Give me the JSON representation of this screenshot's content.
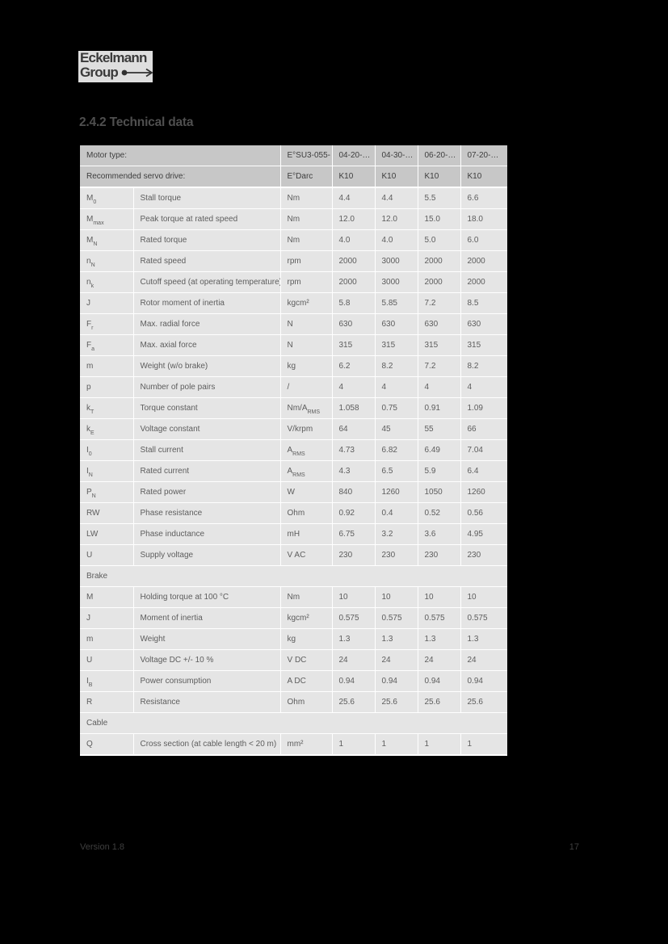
{
  "logo": {
    "line1": "Eckelmann",
    "line2": "Group",
    "arrow_icon": "dot-arrow-right-icon"
  },
  "heading": "2.4.2 Technical data",
  "table": {
    "header_rows": [
      {
        "label": "Motor type:",
        "base": "E°SU3-055-",
        "values": [
          "04-20-…",
          "04-30-…",
          "06-20-…",
          "07-20-…"
        ]
      },
      {
        "label": "Recommended servo drive:",
        "base": "E°Darc",
        "values": [
          "K10",
          "K10",
          "K10",
          "K10"
        ]
      }
    ],
    "rows": [
      {
        "sym": "M",
        "sub": "0",
        "desc": "Stall torque",
        "unit": "Nm",
        "unit_sub": "",
        "values": [
          "4.4",
          "4.4",
          "5.5",
          "6.6"
        ]
      },
      {
        "sym": "M",
        "sub": "max",
        "desc": "Peak torque at rated speed",
        "unit": "Nm",
        "unit_sub": "",
        "values": [
          "12.0",
          "12.0",
          "15.0",
          "18.0"
        ]
      },
      {
        "sym": "M",
        "sub": "N",
        "desc": "Rated torque",
        "unit": "Nm",
        "unit_sub": "",
        "values": [
          "4.0",
          "4.0",
          "5.0",
          "6.0"
        ]
      },
      {
        "sym": "n",
        "sub": "N",
        "desc": "Rated speed",
        "unit": "rpm",
        "unit_sub": "",
        "values": [
          "2000",
          "3000",
          "2000",
          "2000"
        ]
      },
      {
        "sym": "n",
        "sub": "k",
        "desc": "Cutoff speed (at operating temperature)",
        "unit": "rpm",
        "unit_sub": "",
        "values": [
          "2000",
          "3000",
          "2000",
          "2000"
        ]
      },
      {
        "sym": "J",
        "sub": "",
        "desc": "Rotor moment of inertia",
        "unit": "kgcm²",
        "unit_sub": "",
        "values": [
          "5.8",
          "5.85",
          "7.2",
          "8.5"
        ]
      },
      {
        "sym": "F",
        "sub": "r",
        "desc": "Max. radial force",
        "unit": "N",
        "unit_sub": "",
        "values": [
          "630",
          "630",
          "630",
          "630"
        ]
      },
      {
        "sym": "F",
        "sub": "a",
        "desc": "Max. axial force",
        "unit": "N",
        "unit_sub": "",
        "values": [
          "315",
          "315",
          "315",
          "315"
        ]
      },
      {
        "sym": "m",
        "sub": "",
        "desc": "Weight (w/o brake)",
        "unit": "kg",
        "unit_sub": "",
        "values": [
          "6.2",
          "8.2",
          "7.2",
          "8.2"
        ]
      },
      {
        "sym": "p",
        "sub": "",
        "desc": "Number of pole pairs",
        "unit": "/",
        "unit_sub": "",
        "values": [
          "4",
          "4",
          "4",
          "4"
        ]
      },
      {
        "sym": "k",
        "sub": "T",
        "desc": "Torque constant",
        "unit": "Nm/A",
        "unit_sub": "RMS",
        "values": [
          "1.058",
          "0.75",
          "0.91",
          "1.09"
        ]
      },
      {
        "sym": "k",
        "sub": "E",
        "desc": "Voltage constant",
        "unit": "V/krpm",
        "unit_sub": "",
        "values": [
          "64",
          "45",
          "55",
          "66"
        ]
      },
      {
        "sym": "I",
        "sub": "0",
        "desc": "Stall current",
        "unit": "A",
        "unit_sub": "RMS",
        "values": [
          "4.73",
          "6.82",
          "6.49",
          "7.04"
        ]
      },
      {
        "sym": "I",
        "sub": "N",
        "desc": "Rated current",
        "unit": "A",
        "unit_sub": "RMS",
        "values": [
          "4.3",
          "6.5",
          "5.9",
          "6.4"
        ]
      },
      {
        "sym": "P",
        "sub": "N",
        "desc": "Rated power",
        "unit": "W",
        "unit_sub": "",
        "values": [
          "840",
          "1260",
          "1050",
          "1260"
        ]
      },
      {
        "sym": "RW",
        "sub": "",
        "desc": "Phase resistance",
        "unit": "Ohm",
        "unit_sub": "",
        "values": [
          "0.92",
          "0.4",
          "0.52",
          "0.56"
        ]
      },
      {
        "sym": "LW",
        "sub": "",
        "desc": "Phase inductance",
        "unit": "mH",
        "unit_sub": "",
        "values": [
          "6.75",
          "3.2",
          "3.6",
          "4.95"
        ]
      },
      {
        "sym": "U",
        "sub": "",
        "desc": "Supply voltage",
        "unit": "V AC",
        "unit_sub": "",
        "values": [
          "230",
          "230",
          "230",
          "230"
        ]
      },
      {
        "section": "Brake"
      },
      {
        "sym": "M",
        "sub": "",
        "desc": "Holding torque at 100 °C",
        "unit": "Nm",
        "unit_sub": "",
        "values": [
          "10",
          "10",
          "10",
          "10"
        ]
      },
      {
        "sym": "J",
        "sub": "",
        "desc": "Moment of inertia",
        "unit": "kgcm²",
        "unit_sub": "",
        "values": [
          "0.575",
          "0.575",
          "0.575",
          "0.575"
        ]
      },
      {
        "sym": "m",
        "sub": "",
        "desc": "Weight",
        "unit": "kg",
        "unit_sub": "",
        "values": [
          "1.3",
          "1.3",
          "1.3",
          "1.3"
        ]
      },
      {
        "sym": "U",
        "sub": "",
        "desc": "Voltage DC +/- 10 %",
        "unit": "V DC",
        "unit_sub": "",
        "values": [
          "24",
          "24",
          "24",
          "24"
        ]
      },
      {
        "sym": "I",
        "sub": "B",
        "desc": "Power consumption",
        "unit": "A DC",
        "unit_sub": "",
        "values": [
          "0.94",
          "0.94",
          "0.94",
          "0.94"
        ]
      },
      {
        "sym": "R",
        "sub": "",
        "desc": "Resistance",
        "unit": "Ohm",
        "unit_sub": "",
        "values": [
          "25.6",
          "25.6",
          "25.6",
          "25.6"
        ]
      },
      {
        "section": "Cable"
      },
      {
        "sym": "Q",
        "sub": "",
        "desc": "Cross section (at cable length < 20 m)",
        "unit": "mm²",
        "unit_sub": "",
        "values": [
          "1",
          "1",
          "1",
          "1"
        ]
      }
    ]
  },
  "footer": {
    "version": "Version 1.8",
    "page": "17"
  },
  "colors": {
    "page_bg": "#000000",
    "header_bg": "#c7c7c7",
    "row_bg": "#e5e5e5",
    "grid": "#ffffff",
    "header_text": "#3d3d3d",
    "row_text": "#5d5d5d",
    "heading_text": "#4f4f4f",
    "footer_text": "#3f3f3f",
    "logo_bg": "#dedede",
    "logo_text": "#3a3a3a"
  }
}
